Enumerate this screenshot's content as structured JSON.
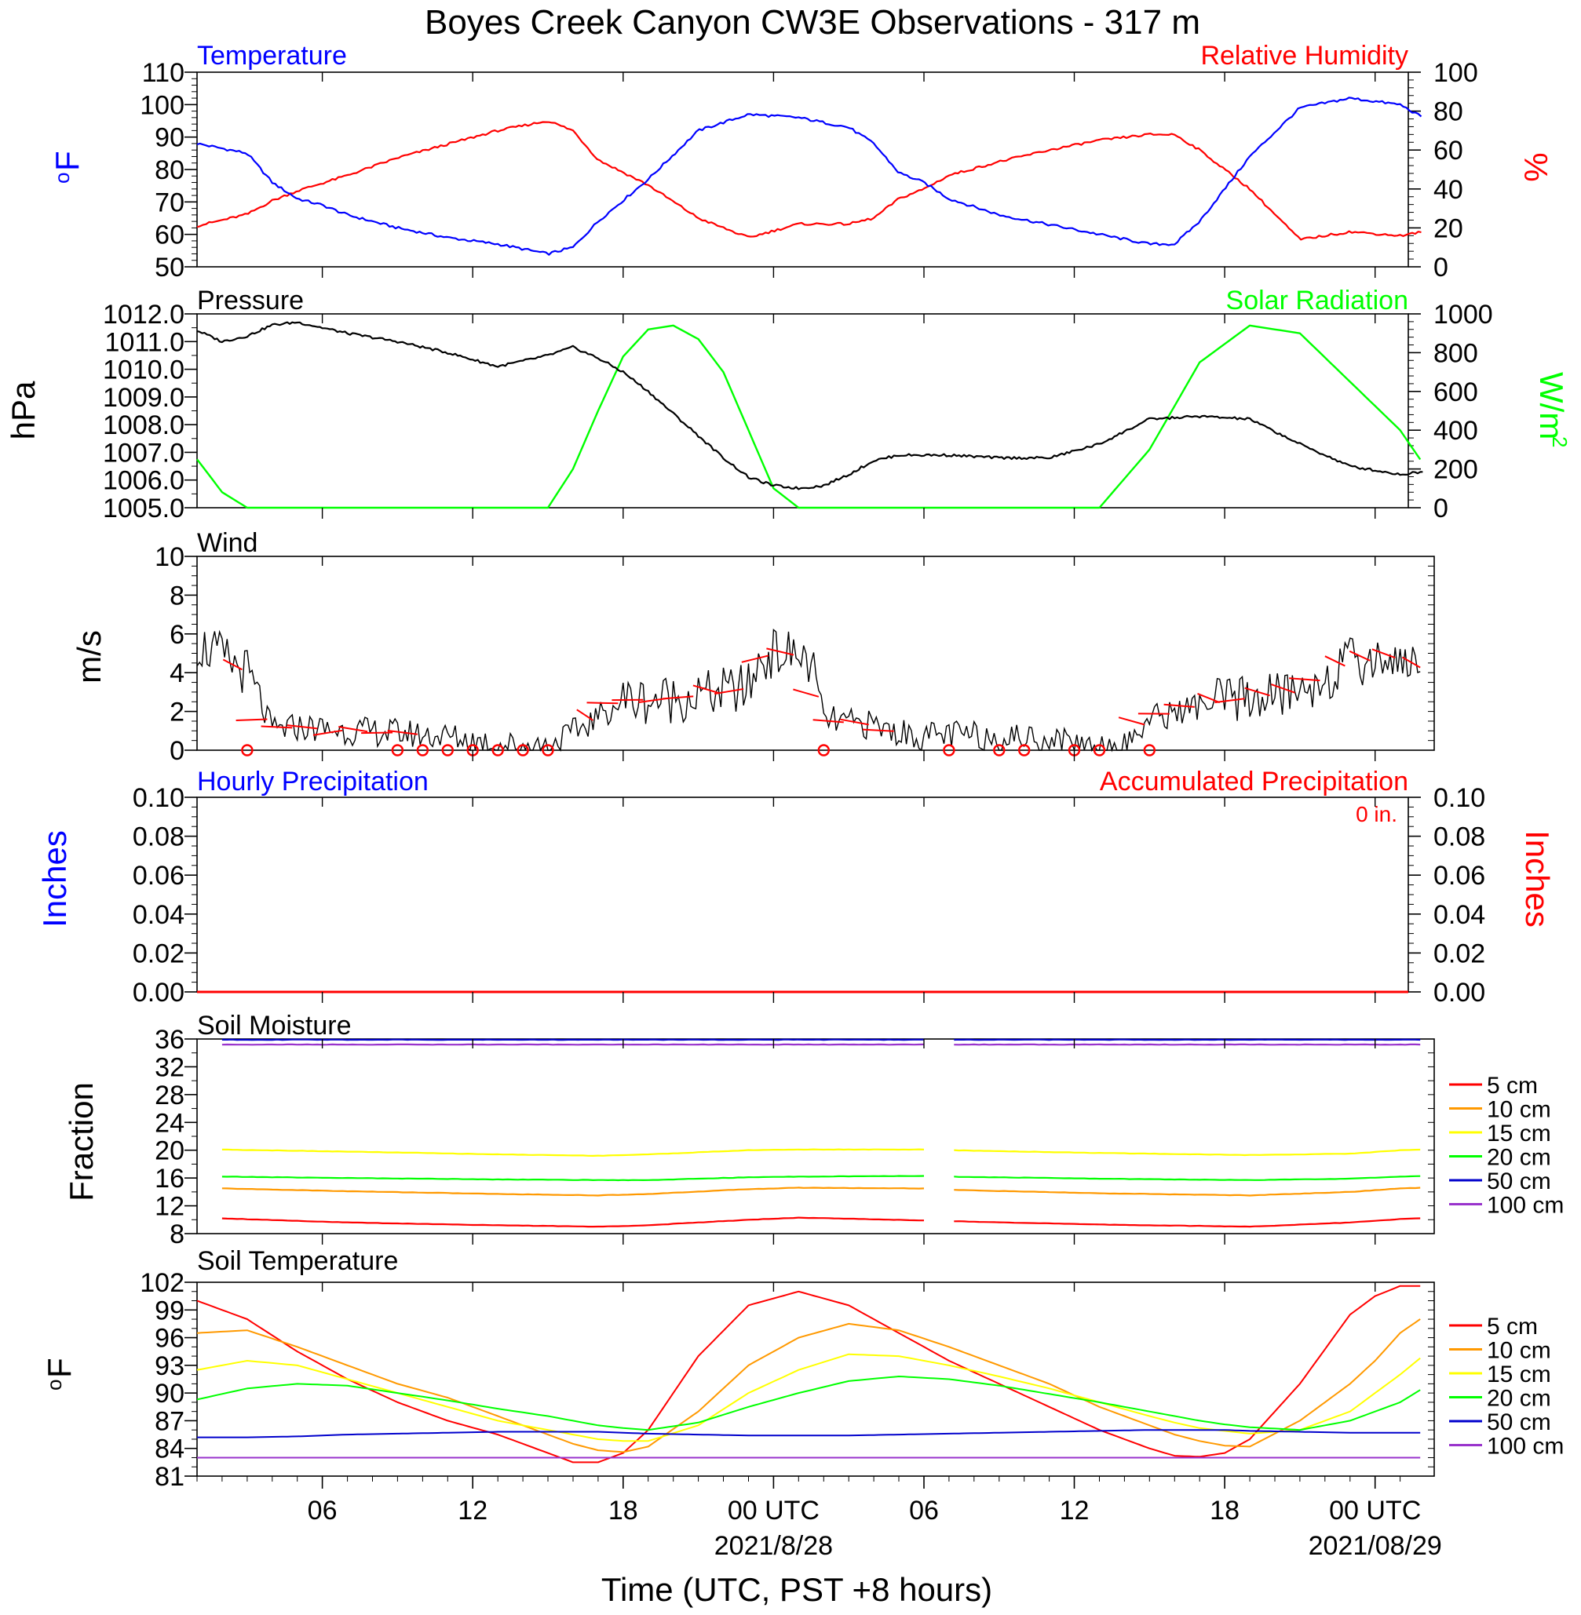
{
  "title": "Boyes Creek Canyon CW3E Observations - 317 m",
  "x_axis": {
    "label": "Time (UTC, PST +8 hours)",
    "tick_labels": [
      "06",
      "12",
      "18",
      "00 UTC",
      "06",
      "12",
      "18",
      "00 UTC"
    ],
    "date_labels": [
      "2021/8/28",
      "2021/08/29"
    ]
  },
  "colors": {
    "blue": "#0000ff",
    "red": "#ff0000",
    "green": "#00ff00",
    "black": "#000000",
    "orange": "#ff9900",
    "yellow": "#ffff00",
    "darkblue": "#0000cc",
    "purple": "#9933cc"
  },
  "panels": {
    "temp_rh": {
      "left_title": "Temperature",
      "right_title": "Relative Humidity",
      "left_unit_base": "o",
      "left_unit_main": "F",
      "right_unit": "%",
      "left_ticks": [
        "110",
        "100",
        "90",
        "80",
        "70",
        "60",
        "50"
      ],
      "right_ticks": [
        "100",
        "80",
        "60",
        "40",
        "20",
        "0"
      ]
    },
    "pressure_solar": {
      "left_title": "Pressure",
      "right_title": "Solar Radiation",
      "left_unit": "hPa",
      "right_unit_main": "W/m",
      "right_unit_sup": "2",
      "left_ticks": [
        "1012.0",
        "1011.0",
        "1010.0",
        "1009.0",
        "1008.0",
        "1007.0",
        "1006.0",
        "1005.0"
      ],
      "right_ticks": [
        "1000",
        "800",
        "600",
        "400",
        "200",
        "0"
      ]
    },
    "wind": {
      "left_title": "Wind",
      "left_unit": "m/s",
      "left_ticks": [
        "10",
        "8",
        "6",
        "4",
        "2",
        "0"
      ]
    },
    "precip": {
      "left_title": "Hourly Precipitation",
      "right_title": "Accumulated Precipitation",
      "accum_note": "0 in.",
      "left_unit": "Inches",
      "right_unit": "Inches",
      "left_ticks": [
        "0.10",
        "0.08",
        "0.06",
        "0.04",
        "0.02",
        "0.00"
      ],
      "right_ticks": [
        "0.10",
        "0.08",
        "0.06",
        "0.04",
        "0.02",
        "0.00"
      ]
    },
    "soil_moisture": {
      "left_title": "Soil Moisture",
      "left_unit": "Fraction",
      "left_ticks": [
        "36",
        "32",
        "28",
        "24",
        "20",
        "16",
        "12",
        "8"
      ],
      "legend": [
        "5 cm",
        "10 cm",
        "15 cm",
        "20 cm",
        "50 cm",
        "100 cm"
      ]
    },
    "soil_temp": {
      "left_title": "Soil Temperature",
      "left_unit_base": "o",
      "left_unit_main": "F",
      "left_ticks": [
        "102",
        "99",
        "96",
        "93",
        "90",
        "87",
        "84",
        "81"
      ],
      "legend": [
        "5 cm",
        "10 cm",
        "15 cm",
        "20 cm",
        "50 cm",
        "100 cm"
      ]
    }
  },
  "chart_data": [
    {
      "type": "line",
      "title": "Temperature / Relative Humidity",
      "x_hours_since_start": [
        0,
        2,
        3,
        4,
        5,
        6,
        8,
        10,
        12,
        14,
        15,
        16,
        18,
        20,
        22,
        24,
        26,
        27,
        28,
        29,
        30,
        32,
        34,
        36,
        38,
        39,
        40,
        42,
        44,
        46,
        48,
        48.9
      ],
      "series": [
        {
          "name": "Temperature",
          "axis": "left",
          "unit": "F",
          "y": [
            88,
            85,
            76,
            71,
            69,
            66,
            62,
            59,
            57,
            54,
            56,
            64,
            77,
            92,
            97,
            96,
            93,
            88,
            79,
            76,
            71,
            66,
            63,
            60,
            57,
            57,
            64,
            84,
            99,
            102,
            100,
            96
          ]
        },
        {
          "name": "Relative Humidity",
          "axis": "right",
          "unit": "%",
          "y": [
            21,
            27,
            34,
            39,
            43,
            47,
            56,
            63,
            70,
            75,
            70,
            55,
            42,
            25,
            15,
            22,
            22,
            25,
            35,
            40,
            47,
            54,
            60,
            65,
            68,
            68,
            60,
            40,
            14,
            18,
            16,
            18
          ]
        }
      ],
      "ylim_left": [
        50,
        110
      ],
      "ylim_right": [
        0,
        100
      ]
    },
    {
      "type": "line",
      "title": "Pressure / Solar Radiation",
      "x_hours_since_start": [
        0,
        1,
        2,
        3,
        4,
        6,
        8,
        10,
        12,
        13,
        14,
        15,
        16,
        17,
        18,
        19,
        20,
        21,
        22,
        23,
        24,
        25,
        26,
        27,
        28,
        30,
        32,
        34,
        36,
        38,
        40,
        42,
        44,
        46,
        48,
        48.9
      ],
      "series": [
        {
          "name": "Pressure",
          "axis": "left",
          "unit": "hPa",
          "y": [
            1011.4,
            1011.0,
            1011.2,
            1011.6,
            1011.7,
            1011.3,
            1011.0,
            1010.6,
            1010.1,
            1010.3,
            1010.5,
            1010.8,
            1010.4,
            1009.9,
            1009.2,
            1008.4,
            1007.6,
            1006.8,
            1006.1,
            1005.8,
            1005.7,
            1005.8,
            1006.2,
            1006.7,
            1006.9,
            1006.9,
            1006.8,
            1006.8,
            1007.3,
            1008.2,
            1008.3,
            1008.2,
            1007.3,
            1006.5,
            1006.2,
            1006.3
          ]
        },
        {
          "name": "Solar Radiation",
          "axis": "right",
          "unit": "W/m2",
          "y": [
            250,
            80,
            0,
            0,
            0,
            0,
            0,
            0,
            0,
            0,
            0,
            200,
            500,
            780,
            920,
            940,
            870,
            700,
            400,
            100,
            0,
            0,
            0,
            0,
            0,
            0,
            0,
            0,
            0,
            300,
            750,
            940,
            900,
            650,
            400,
            230
          ]
        }
      ],
      "ylim_left": [
        1005,
        1012
      ],
      "ylim_right": [
        0,
        1000
      ]
    },
    {
      "type": "line",
      "title": "Wind",
      "x_hours_since_start": [
        0,
        1,
        2,
        3,
        4,
        6,
        8,
        10,
        12,
        14,
        15,
        16,
        17,
        18,
        20,
        22,
        22.5,
        23,
        24,
        24.5,
        25,
        26,
        27,
        28,
        29,
        30,
        32,
        34,
        36,
        37,
        38,
        40,
        42,
        44,
        46,
        48,
        48.9
      ],
      "series": [
        {
          "name": "Wind",
          "unit": "m/s",
          "y": [
            5.5,
            4.8,
            4.0,
            1.0,
            1.2,
            1.0,
            0.9,
            0.7,
            0.3,
            0.2,
            0.9,
            1.7,
            2.6,
            2.6,
            2.8,
            3.2,
            4.7,
            5.0,
            4.9,
            4.5,
            1.6,
            1.4,
            1.3,
            0.9,
            0.7,
            0.8,
            0.7,
            0.6,
            0.2,
            0.2,
            1.6,
            2.3,
            2.7,
            3.0,
            4.5,
            4.8,
            4.2
          ]
        }
      ],
      "ylim": [
        0,
        10
      ]
    },
    {
      "type": "line",
      "title": "Precipitation",
      "series": [
        {
          "name": "Hourly Precipitation",
          "axis": "left",
          "x_hours_since_start": [
            0,
            48.9
          ],
          "y": [
            0,
            0
          ]
        },
        {
          "name": "Accumulated Precipitation",
          "axis": "right",
          "x_hours_since_start": [
            0,
            48.9
          ],
          "y": [
            0,
            0
          ]
        }
      ],
      "ylim": [
        0,
        0.1
      ]
    },
    {
      "type": "line",
      "title": "Soil Moisture",
      "x_hours_since_start": [
        1,
        6,
        12,
        16,
        18,
        22,
        24,
        29,
        29.1,
        30,
        36,
        42,
        46,
        48,
        48.9
      ],
      "series": [
        {
          "name": "5 cm",
          "y": [
            10.2,
            9.6,
            9.2,
            9.0,
            9.2,
            10.0,
            10.3,
            9.9,
            null,
            9.8,
            9.3,
            9.0,
            9.6,
            10.1,
            10.2
          ]
        },
        {
          "name": "10 cm",
          "y": [
            14.5,
            14.1,
            13.7,
            13.5,
            13.7,
            14.4,
            14.6,
            14.5,
            null,
            14.3,
            13.8,
            13.5,
            14.0,
            14.5,
            14.6
          ]
        },
        {
          "name": "15 cm",
          "y": [
            20.1,
            19.8,
            19.4,
            19.2,
            19.4,
            20.0,
            20.1,
            20.1,
            null,
            20.0,
            19.6,
            19.3,
            19.5,
            20.0,
            20.1
          ]
        },
        {
          "name": "20 cm",
          "y": [
            16.2,
            16.0,
            15.8,
            15.7,
            15.7,
            16.1,
            16.2,
            16.3,
            null,
            16.2,
            15.9,
            15.7,
            15.9,
            16.2,
            16.3
          ]
        },
        {
          "name": "50 cm",
          "y": [
            35.9,
            35.9,
            35.9,
            35.9,
            35.9,
            35.9,
            35.9,
            35.9,
            null,
            35.9,
            35.9,
            35.9,
            35.9,
            35.9,
            35.9
          ]
        },
        {
          "name": "100 cm",
          "y": [
            35.2,
            35.2,
            35.2,
            35.2,
            35.2,
            35.2,
            35.2,
            35.2,
            null,
            35.2,
            35.2,
            35.2,
            35.2,
            35.2,
            35.2
          ]
        }
      ],
      "ylim": [
        8,
        36
      ]
    },
    {
      "type": "line",
      "title": "Soil Temperature",
      "x_hours_since_start": [
        0,
        2,
        4,
        6,
        8,
        10,
        12,
        14,
        15,
        16,
        17,
        18,
        20,
        22,
        24,
        26,
        28,
        30,
        32,
        34,
        36,
        38,
        39,
        40,
        41,
        42,
        44,
        46,
        47,
        48,
        48.9
      ],
      "series": [
        {
          "name": "5 cm",
          "y": [
            100.0,
            98.0,
            94.5,
            91.5,
            89.0,
            87.0,
            85.5,
            83.5,
            82.5,
            82.5,
            83.5,
            86.0,
            94.0,
            99.5,
            101.0,
            99.5,
            96.5,
            93.5,
            91.0,
            88.5,
            86.0,
            84.0,
            83.2,
            83.1,
            83.5,
            85.0,
            91.0,
            98.5,
            100.5,
            101.6,
            101.6
          ]
        },
        {
          "name": "10 cm",
          "y": [
            96.5,
            96.8,
            95.0,
            93.0,
            91.0,
            89.5,
            87.5,
            85.5,
            84.5,
            83.8,
            83.6,
            84.2,
            88.0,
            93.0,
            96.0,
            97.5,
            96.8,
            95.0,
            93.0,
            91.0,
            88.5,
            86.5,
            85.5,
            84.8,
            84.3,
            84.2,
            87.0,
            91.0,
            93.5,
            96.5,
            98.2
          ]
        },
        {
          "name": "15 cm",
          "y": [
            92.5,
            93.5,
            93.0,
            91.5,
            90.0,
            88.5,
            87.0,
            86.0,
            85.5,
            85.0,
            84.8,
            84.8,
            86.5,
            90.0,
            92.5,
            94.2,
            94.0,
            93.0,
            91.8,
            90.5,
            89.0,
            87.5,
            86.8,
            86.2,
            85.9,
            85.6,
            86.0,
            88.0,
            90.0,
            92.0,
            94.0
          ]
        },
        {
          "name": "20 cm",
          "y": [
            89.3,
            90.5,
            91.0,
            90.8,
            90.0,
            89.2,
            88.3,
            87.5,
            87.0,
            86.5,
            86.2,
            86.0,
            86.8,
            88.5,
            90.0,
            91.3,
            91.8,
            91.5,
            90.8,
            89.9,
            89.0,
            88.0,
            87.5,
            87.0,
            86.6,
            86.3,
            86.0,
            87.0,
            88.0,
            89.0,
            90.5
          ]
        },
        {
          "name": "50 cm",
          "y": [
            85.2,
            85.2,
            85.3,
            85.5,
            85.6,
            85.7,
            85.8,
            85.8,
            85.8,
            85.8,
            85.7,
            85.6,
            85.5,
            85.4,
            85.4,
            85.4,
            85.5,
            85.6,
            85.7,
            85.8,
            85.9,
            86.0,
            86.0,
            86.0,
            86.0,
            85.9,
            85.8,
            85.7,
            85.7,
            85.7,
            85.7
          ]
        },
        {
          "name": "100 cm",
          "y": [
            83.0,
            83.0,
            83.0,
            83.0,
            83.0,
            83.0,
            83.0,
            83.0,
            83.0,
            83.0,
            83.0,
            83.0,
            83.0,
            83.0,
            83.0,
            83.0,
            83.0,
            83.0,
            83.0,
            83.0,
            83.0,
            83.0,
            83.0,
            83.0,
            83.0,
            83.0,
            83.0,
            83.0,
            83.0,
            83.0,
            83.0
          ]
        }
      ],
      "ylim": [
        81,
        102
      ]
    }
  ],
  "wind_calm_markers_hours": [
    2,
    8,
    9,
    10,
    11,
    12,
    13,
    14,
    25,
    30,
    32,
    33,
    35,
    36,
    38
  ]
}
